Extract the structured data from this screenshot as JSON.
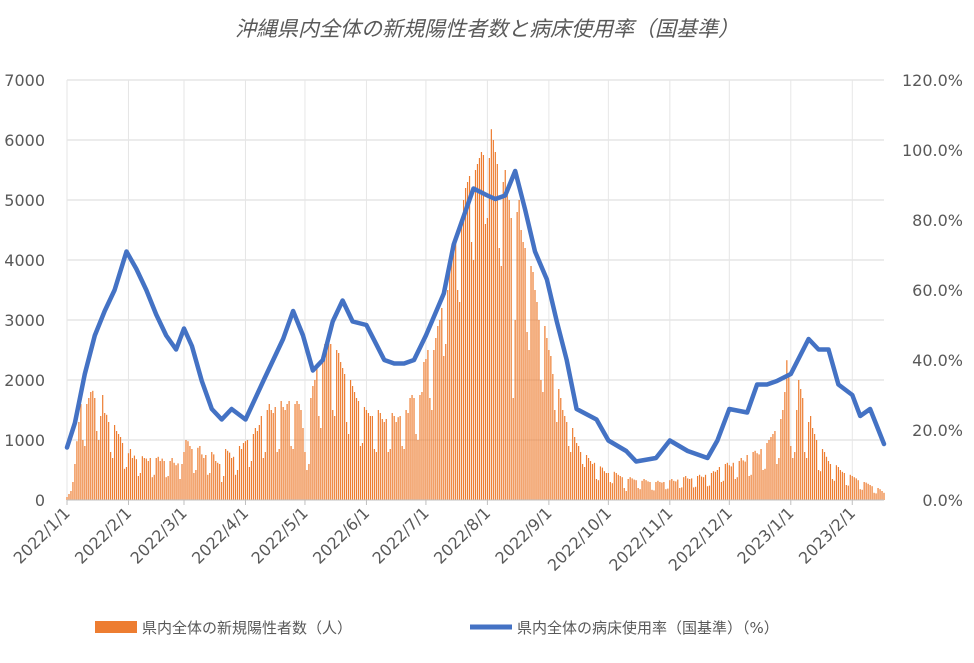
{
  "chart_data": {
    "type": "bar+line",
    "title": "沖縄県内全体の新規陽性者数と病床使用率（国基準）",
    "x_range": [
      "2022/1/1",
      "2023/2/17"
    ],
    "x_ticks": [
      "2022/1/1",
      "2022/2/1",
      "2022/3/1",
      "2022/4/1",
      "2022/5/1",
      "2022/6/1",
      "2022/7/1",
      "2022/8/1",
      "2022/9/1",
      "2022/10/1",
      "2022/11/1",
      "2022/12/1",
      "2023/1/1",
      "2023/2/1"
    ],
    "y_left": {
      "range": [
        0,
        7000
      ],
      "ticks": [
        "0",
        "1000",
        "2000",
        "3000",
        "4000",
        "5000",
        "6000",
        "7000"
      ]
    },
    "y_right": {
      "range": [
        0,
        120
      ],
      "ticks": [
        "0.0%",
        "20.0%",
        "40.0%",
        "60.0%",
        "80.0%",
        "100.0%",
        "120.0%"
      ]
    },
    "grid": true,
    "legend_position": "bottom",
    "series": [
      {
        "name": "県内全体の新規陽性者数（人）",
        "type": "bar",
        "axis": "left",
        "color": "#ED7D31",
        "frequency": "daily",
        "values": [
          50,
          100,
          150,
          300,
          600,
          980,
          1300,
          1600,
          1000,
          900,
          1600,
          1700,
          1800,
          1820,
          1700,
          1150,
          1000,
          1400,
          1750,
          1450,
          1420,
          1300,
          800,
          700,
          1250,
          1150,
          1100,
          1050,
          950,
          520,
          550,
          780,
          850,
          700,
          740,
          680,
          400,
          450,
          730,
          700,
          690,
          650,
          700,
          380,
          420,
          700,
          720,
          650,
          690,
          650,
          380,
          400,
          650,
          700,
          620,
          580,
          610,
          350,
          600,
          800,
          1000,
          980,
          900,
          850,
          450,
          500,
          870,
          900,
          760,
          700,
          750,
          420,
          450,
          800,
          760,
          650,
          620,
          600,
          300,
          400,
          850,
          820,
          790,
          700,
          720,
          420,
          500,
          900,
          850,
          950,
          980,
          1000,
          550,
          650,
          1100,
          1200,
          1150,
          1250,
          1400,
          700,
          800,
          1500,
          1600,
          1500,
          1450,
          1550,
          800,
          850,
          1650,
          1550,
          1500,
          1600,
          1650,
          900,
          850,
          1600,
          1650,
          1600,
          1500,
          1200,
          800,
          500,
          600,
          1700,
          1900,
          2000,
          2200,
          1400,
          1200,
          2300,
          2600,
          2500,
          2700,
          2600,
          1500,
          1400,
          2500,
          2450,
          2300,
          2200,
          2100,
          1300,
          1100,
          2000,
          1900,
          1800,
          1700,
          1650,
          900,
          950,
          1550,
          1500,
          1450,
          1400,
          1400,
          850,
          800,
          1500,
          1450,
          1350,
          1300,
          1350,
          800,
          850,
          1450,
          1400,
          1300,
          1380,
          1400,
          900,
          850,
          1500,
          1450,
          1700,
          1750,
          1700,
          1100,
          1000,
          1750,
          1800,
          2300,
          2350,
          2500,
          1700,
          1500,
          2500,
          2700,
          2900,
          3000,
          3200,
          2400,
          2600,
          3500,
          3800,
          4000,
          4200,
          4300,
          3500,
          3300,
          4600,
          5000,
          5200,
          5300,
          5400,
          4300,
          4000,
          5500,
          5600,
          5700,
          5800,
          5750,
          4600,
          4700,
          5700,
          6180,
          6000,
          5800,
          5600,
          4200,
          3900,
          5300,
          5500,
          5100,
          5000,
          4700,
          1700,
          3000,
          4800,
          5000,
          4500,
          4300,
          4200,
          2800,
          2500,
          3900,
          3800,
          3500,
          3300,
          3000,
          2000,
          1800,
          2900,
          2700,
          2500,
          2400,
          2100,
          1500,
          1300,
          1850,
          1700,
          1500,
          1400,
          1300,
          900,
          800,
          1200,
          1050,
          950,
          900,
          800,
          600,
          550,
          750,
          700,
          650,
          600,
          620,
          350,
          330,
          560,
          540,
          480,
          450,
          450,
          300,
          280,
          470,
          450,
          420,
          400,
          380,
          200,
          150,
          350,
          380,
          360,
          340,
          330,
          200,
          180,
          320,
          350,
          330,
          310,
          300,
          170,
          160,
          300,
          320,
          300,
          290,
          300,
          180,
          190,
          330,
          350,
          320,
          310,
          340,
          200,
          210,
          380,
          400,
          360,
          350,
          360,
          210,
          220,
          400,
          420,
          390,
          380,
          420,
          230,
          240,
          450,
          480,
          470,
          500,
          550,
          300,
          320,
          600,
          620,
          580,
          560,
          620,
          350,
          380,
          650,
          700,
          660,
          640,
          750,
          400,
          420,
          800,
          820,
          780,
          760,
          850,
          500,
          520,
          950,
          1000,
          1050,
          1100,
          1150,
          600,
          700,
          1350,
          1500,
          1800,
          2330,
          2100,
          900,
          700,
          800,
          1500,
          2000,
          1850,
          1700,
          800,
          700,
          1300,
          1400,
          1200,
          1100,
          1000,
          500,
          480,
          850,
          800,
          720,
          650,
          600,
          350,
          320,
          580,
          550,
          500,
          470,
          450,
          250,
          240,
          420,
          400,
          380,
          360,
          330,
          180,
          170,
          300,
          290,
          270,
          250,
          230,
          120,
          110,
          200,
          180,
          150,
          120
        ]
      },
      {
        "name": "県内全体の病床使用率（国基準）（%）",
        "type": "line",
        "axis": "right",
        "color": "#4472C4",
        "points": [
          [
            "2022/1/1",
            15
          ],
          [
            "2022/1/5",
            22
          ],
          [
            "2022/1/10",
            36
          ],
          [
            "2022/1/15",
            47
          ],
          [
            "2022/1/20",
            54
          ],
          [
            "2022/1/25",
            60
          ],
          [
            "2022/1/31",
            71
          ],
          [
            "2022/2/5",
            66
          ],
          [
            "2022/2/10",
            60
          ],
          [
            "2022/2/15",
            53
          ],
          [
            "2022/2/20",
            47
          ],
          [
            "2022/2/25",
            43
          ],
          [
            "2022/3/1",
            49
          ],
          [
            "2022/3/5",
            44
          ],
          [
            "2022/3/10",
            34
          ],
          [
            "2022/3/15",
            26
          ],
          [
            "2022/3/20",
            23
          ],
          [
            "2022/3/25",
            26
          ],
          [
            "2022/4/1",
            23
          ],
          [
            "2022/4/10",
            34
          ],
          [
            "2022/4/20",
            46
          ],
          [
            "2022/4/25",
            54
          ],
          [
            "2022/4/30",
            47
          ],
          [
            "2022/5/5",
            37
          ],
          [
            "2022/5/10",
            40
          ],
          [
            "2022/5/15",
            51
          ],
          [
            "2022/5/20",
            57
          ],
          [
            "2022/5/25",
            51
          ],
          [
            "2022/6/1",
            50
          ],
          [
            "2022/6/10",
            40
          ],
          [
            "2022/6/15",
            39
          ],
          [
            "2022/6/20",
            39
          ],
          [
            "2022/6/25",
            40
          ],
          [
            "2022/7/1",
            47
          ],
          [
            "2022/7/10",
            59
          ],
          [
            "2022/7/15",
            73
          ],
          [
            "2022/7/20",
            81
          ],
          [
            "2022/7/25",
            89
          ],
          [
            "2022/8/1",
            87
          ],
          [
            "2022/8/5",
            86
          ],
          [
            "2022/8/10",
            87
          ],
          [
            "2022/8/15",
            94
          ],
          [
            "2022/8/20",
            83
          ],
          [
            "2022/8/25",
            71
          ],
          [
            "2022/8/31",
            63
          ],
          [
            "2022/9/5",
            51
          ],
          [
            "2022/9/10",
            40
          ],
          [
            "2022/9/15",
            26
          ],
          [
            "2022/9/25",
            23
          ],
          [
            "2022/10/1",
            17
          ],
          [
            "2022/10/10",
            14
          ],
          [
            "2022/10/15",
            11
          ],
          [
            "2022/10/25",
            12
          ],
          [
            "2022/11/1",
            17
          ],
          [
            "2022/11/10",
            14
          ],
          [
            "2022/11/20",
            12
          ],
          [
            "2022/11/25",
            17
          ],
          [
            "2022/12/1",
            26
          ],
          [
            "2022/12/10",
            25
          ],
          [
            "2022/12/15",
            33
          ],
          [
            "2022/12/20",
            33
          ],
          [
            "2022/12/25",
            34
          ],
          [
            "2023/1/1",
            36
          ],
          [
            "2023/1/10",
            46
          ],
          [
            "2023/1/15",
            43
          ],
          [
            "2023/1/20",
            43
          ],
          [
            "2023/1/25",
            33
          ],
          [
            "2023/2/1",
            30
          ],
          [
            "2023/2/5",
            24
          ],
          [
            "2023/2/10",
            26
          ],
          [
            "2023/2/17",
            16
          ]
        ]
      }
    ]
  }
}
